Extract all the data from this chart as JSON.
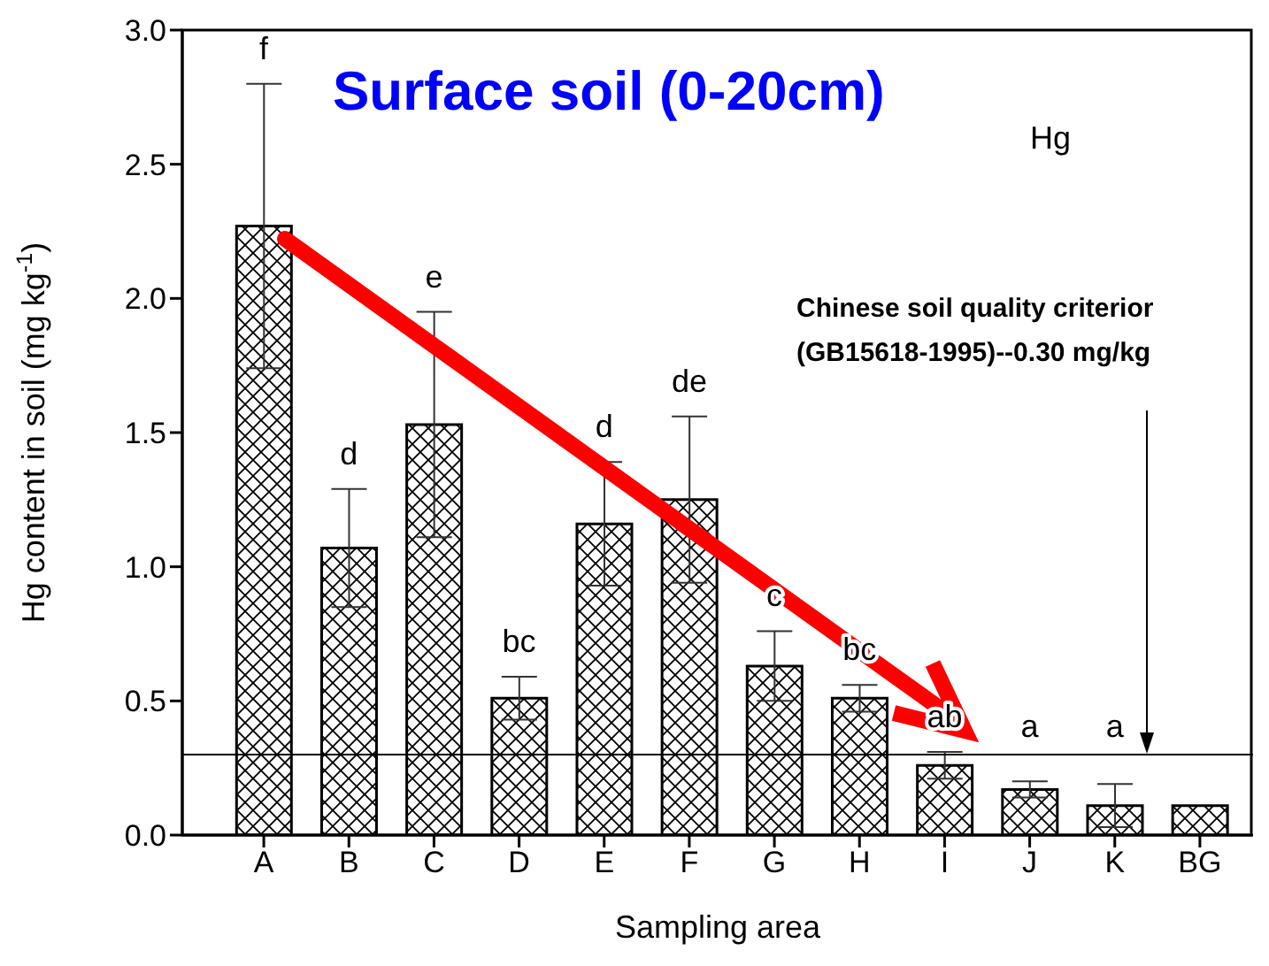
{
  "chart_data": {
    "type": "bar",
    "title": "Surface soil (0-20cm)",
    "xlabel": "Sampling area",
    "ylabel": "Hg content in soil (mg kg$^{-1}$)",
    "categories": [
      "A",
      "B",
      "C",
      "D",
      "E",
      "F",
      "G",
      "H",
      "I",
      "J",
      "K",
      "BG"
    ],
    "series": [
      {
        "color": "#000000",
        "values": [
          2.27,
          1.07,
          1.53,
          0.51,
          1.16,
          1.25,
          0.63,
          0.51,
          0.26,
          0.17,
          0.11,
          0.11
        ],
        "errors": [
          0.53,
          0.22,
          0.42,
          0.08,
          0.23,
          0.31,
          0.13,
          0.05,
          0.05,
          0.03,
          0.08,
          null
        ]
      }
    ],
    "ylim": [
      0,
      3
    ],
    "yticks": [
      {
        "value": 0,
        "label": "0.0"
      },
      {
        "value": 0.5,
        "label": "0.5"
      },
      {
        "value": 1,
        "label": "1.0"
      },
      {
        "value": 1.5,
        "label": "1.5"
      },
      {
        "value": 2,
        "label": "2.0"
      },
      {
        "value": 2.5,
        "label": "2.5"
      },
      {
        "value": 3,
        "label": "3.0"
      }
    ],
    "ref_lines": [
      {
        "axis": "y",
        "value": 0.3,
        "label": "Chinese soil quality criterior\n(GB15618-1995)--0.30 mg/kg",
        "color": "#000000"
      }
    ],
    "annotations": [
      "Hg",
      "f",
      "d",
      "e",
      "bc",
      "d",
      "de",
      "c",
      "bc",
      "ab",
      "a",
      "a"
    ]
  }
}
